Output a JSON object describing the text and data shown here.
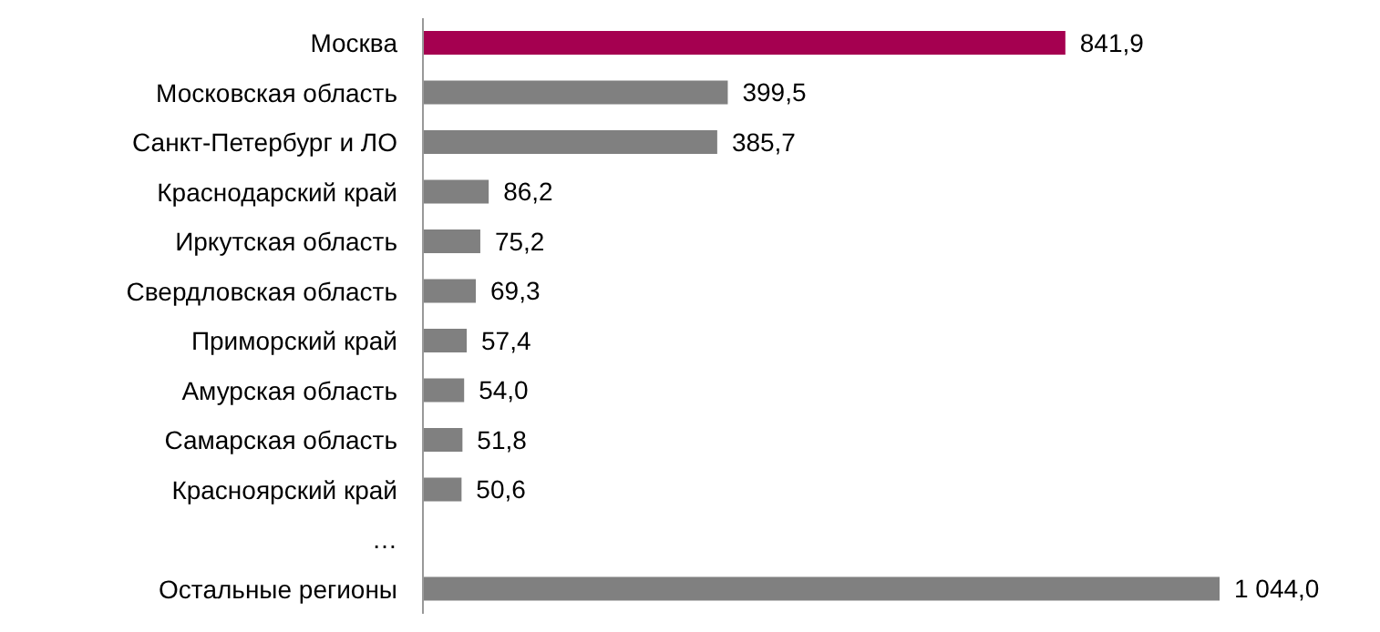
{
  "chart_data": {
    "type": "bar",
    "orientation": "horizontal",
    "categories": [
      "Москва",
      "Московская область",
      "Санкт-Петербург и ЛО",
      "Краснодарский край",
      "Иркутская область",
      "Свердловская область",
      "Приморский край",
      "Амурская область",
      "Самарская область",
      "Красноярский край",
      "…",
      "Остальные регионы"
    ],
    "values": [
      841.9,
      399.5,
      385.7,
      86.2,
      75.2,
      69.3,
      57.4,
      54.0,
      51.8,
      50.6,
      null,
      1044.0
    ],
    "colors": [
      "#a50050",
      "#808080",
      "#808080",
      "#808080",
      "#808080",
      "#808080",
      "#808080",
      "#808080",
      "#808080",
      "#808080",
      "#808080",
      "#808080"
    ],
    "value_labels": [
      "841,9",
      "399,5",
      "385,7",
      "86,2",
      "75,2",
      "69,3",
      "57,4",
      "54,0",
      "51,8",
      "50,6",
      null,
      "1 044,0"
    ]
  }
}
